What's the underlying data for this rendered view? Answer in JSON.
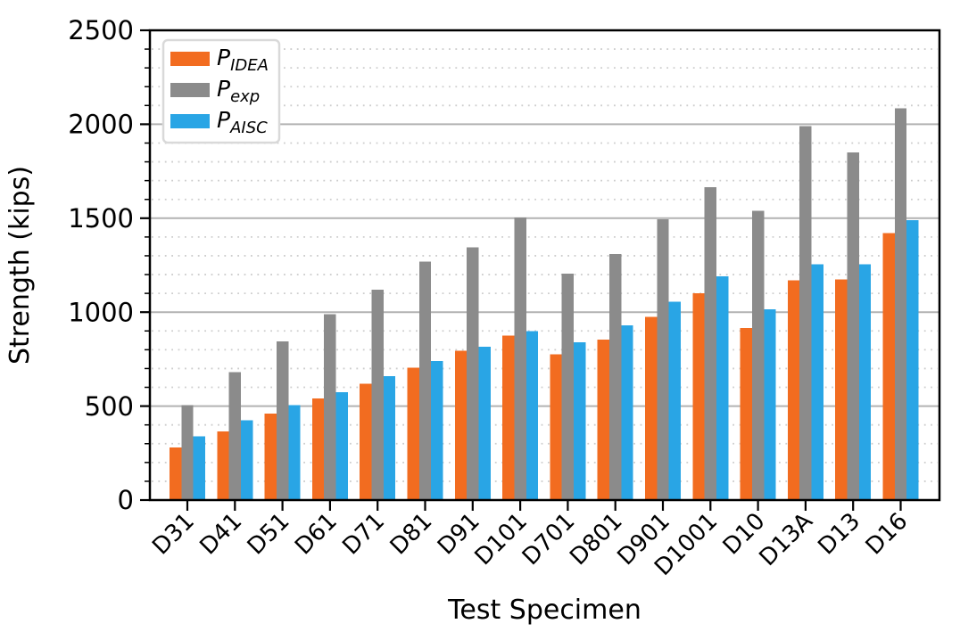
{
  "chart_data": {
    "type": "bar",
    "title": "",
    "xlabel": "Test Specimen",
    "ylabel": "Strength (kips)",
    "ylim": [
      0,
      2500
    ],
    "yticks": [
      0,
      500,
      1000,
      1500,
      2000,
      2500
    ],
    "ytick_minor_step": 100,
    "grid": {
      "major_solid": true,
      "minor_dotted": true
    },
    "legend_position": "upper-left",
    "categories": [
      "D31",
      "D41",
      "D51",
      "D61",
      "D71",
      "D81",
      "D91",
      "D101",
      "D701",
      "D801",
      "D901",
      "D1001",
      "D10",
      "D13A",
      "D13",
      "D16"
    ],
    "series": [
      {
        "name": "P_IDEA",
        "legend_main": "P",
        "legend_sub": "IDEA",
        "color": "#F26C20",
        "values": [
          280,
          365,
          460,
          540,
          620,
          705,
          795,
          875,
          775,
          855,
          975,
          1100,
          915,
          1170,
          1175,
          1420
        ]
      },
      {
        "name": "P_exp",
        "legend_main": "P",
        "legend_sub": "exp",
        "color": "#8B8B8B",
        "values": [
          505,
          680,
          845,
          990,
          1120,
          1270,
          1345,
          1505,
          1205,
          1310,
          1495,
          1665,
          1540,
          1990,
          1850,
          2085
        ]
      },
      {
        "name": "P_AISC",
        "legend_main": "P",
        "legend_sub": "AISC",
        "color": "#29A5E5",
        "values": [
          340,
          425,
          505,
          575,
          660,
          740,
          815,
          900,
          840,
          930,
          1055,
          1190,
          1015,
          1255,
          1255,
          1490
        ]
      }
    ]
  },
  "style_colors": {
    "major_grid": "#B2B2B2",
    "minor_grid": "#CDCDCD",
    "spine": "#000000",
    "legend_border": "#D9D9D9",
    "legend_bg": "#FFFFFF"
  }
}
